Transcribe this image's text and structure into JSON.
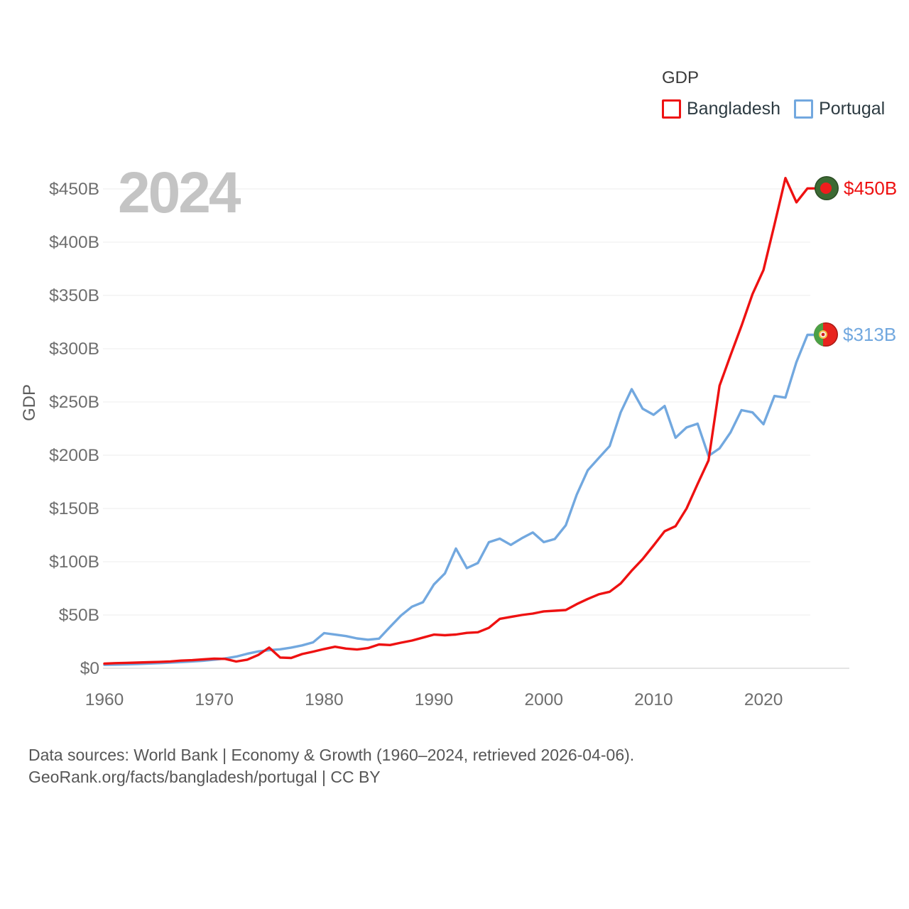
{
  "watermark": "2024",
  "legend": {
    "title": "GDP",
    "items": [
      {
        "label": "Bangladesh",
        "color": "#ee1111"
      },
      {
        "label": "Portugal",
        "color": "#72a8df"
      }
    ]
  },
  "end_labels": {
    "bangladesh": {
      "value": "$450B",
      "flag": "bangladesh-flag"
    },
    "portugal": {
      "value": "$313B",
      "flag": "portugal-flag"
    }
  },
  "footer": {
    "line1": "Data sources: World Bank | Economy & Growth (1960–2024, retrieved 2026-04-06).",
    "line2": "GeoRank.org/facts/bangladesh/portugal | CC BY"
  },
  "chart_data": {
    "type": "line",
    "title": "GDP",
    "xlabel": "",
    "ylabel": "GDP",
    "grid": true,
    "legend_position": "top-right",
    "ylim": [
      0,
      470
    ],
    "x_ticks": [
      1960,
      1970,
      1980,
      1990,
      2000,
      2010,
      2020
    ],
    "y_ticks": [
      {
        "value": 0,
        "label": "$0"
      },
      {
        "value": 50,
        "label": "$50B"
      },
      {
        "value": 100,
        "label": "$100B"
      },
      {
        "value": 150,
        "label": "$150B"
      },
      {
        "value": 200,
        "label": "$200B"
      },
      {
        "value": 250,
        "label": "$250B"
      },
      {
        "value": 300,
        "label": "$300B"
      },
      {
        "value": 350,
        "label": "$350B"
      },
      {
        "value": 400,
        "label": "$400B"
      },
      {
        "value": 450,
        "label": "$450B"
      }
    ],
    "x": [
      1960,
      1961,
      1962,
      1963,
      1964,
      1965,
      1966,
      1967,
      1968,
      1969,
      1970,
      1971,
      1972,
      1973,
      1974,
      1975,
      1976,
      1977,
      1978,
      1979,
      1980,
      1981,
      1982,
      1983,
      1984,
      1985,
      1986,
      1987,
      1988,
      1989,
      1990,
      1991,
      1992,
      1993,
      1994,
      1995,
      1996,
      1997,
      1998,
      1999,
      2000,
      2001,
      2002,
      2003,
      2004,
      2005,
      2006,
      2007,
      2008,
      2009,
      2010,
      2011,
      2012,
      2013,
      2014,
      2015,
      2016,
      2017,
      2018,
      2019,
      2020,
      2021,
      2022,
      2023,
      2024
    ],
    "unit": "billions of US dollars",
    "series": [
      {
        "name": "Bangladesh",
        "color": "#ee1111",
        "values": [
          4.3,
          4.8,
          5.1,
          5.3,
          5.7,
          5.9,
          6.4,
          7.2,
          7.6,
          8.3,
          9.0,
          8.8,
          6.3,
          8.1,
          12.5,
          19.4,
          10.1,
          9.7,
          13.3,
          15.6,
          18.1,
          20.2,
          18.5,
          17.6,
          18.9,
          22.3,
          21.8,
          24.0,
          26.0,
          28.8,
          31.6,
          31.0,
          31.7,
          33.2,
          33.8,
          37.9,
          46.4,
          48.2,
          50.0,
          51.3,
          53.4,
          54.0,
          54.7,
          60.2,
          65.1,
          69.4,
          71.8,
          79.6,
          91.6,
          102.5,
          115.3,
          128.6,
          133.4,
          150.0,
          172.9,
          195.1,
          265.2,
          293.8,
          321.4,
          351.2,
          373.9,
          416.3,
          460.2,
          437.4,
          450.5
        ]
      },
      {
        "name": "Portugal",
        "color": "#72a8df",
        "values": [
          3.2,
          3.4,
          3.7,
          4.0,
          4.4,
          4.8,
          5.3,
          5.8,
          6.4,
          7.1,
          8.1,
          9.2,
          10.9,
          13.6,
          15.8,
          17.0,
          17.8,
          19.4,
          21.5,
          24.3,
          33.0,
          31.6,
          30.2,
          28.0,
          26.8,
          27.8,
          38.8,
          49.5,
          57.8,
          62.0,
          78.7,
          89.1,
          112.4,
          94.0,
          98.8,
          118.3,
          121.7,
          115.8,
          122.1,
          127.5,
          118.4,
          121.3,
          134.2,
          162.9,
          185.8,
          197.3,
          208.6,
          240.2,
          262.0,
          243.7,
          237.9,
          246.2,
          216.4,
          226.1,
          229.6,
          199.3,
          206.4,
          221.4,
          242.3,
          240.2,
          229.1,
          255.6,
          254.1,
          287.5,
          313.0
        ]
      }
    ]
  }
}
